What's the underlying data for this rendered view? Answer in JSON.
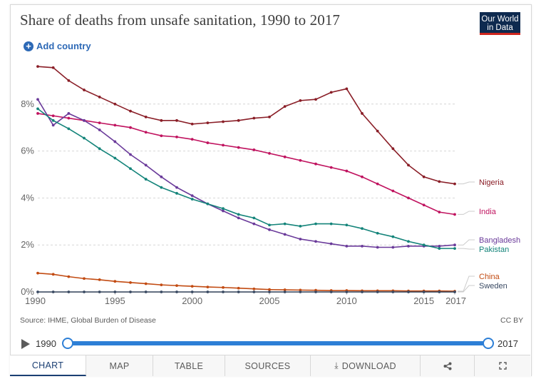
{
  "header": {
    "title": "Share of deaths from unsafe sanitation, 1990 to 2017",
    "logo_line1": "Our World",
    "logo_line2": "in Data",
    "add_country": "Add country"
  },
  "footer": {
    "source": "Source: IHME, Global Burden of Disease",
    "license": "CC BY"
  },
  "timeline": {
    "start": "1990",
    "end": "2017"
  },
  "tabs": [
    {
      "label": "CHART",
      "active": true
    },
    {
      "label": "MAP",
      "active": false
    },
    {
      "label": "TABLE",
      "active": false
    },
    {
      "label": "SOURCES",
      "active": false
    },
    {
      "label": "DOWNLOAD",
      "active": false
    }
  ],
  "chart_data": {
    "type": "line",
    "title": "Share of deaths from unsafe sanitation, 1990 to 2017",
    "xlabel": "",
    "ylabel": "",
    "xlim": [
      1990,
      2017
    ],
    "ylim": [
      0,
      10
    ],
    "y_ticks": [
      0,
      2,
      4,
      6,
      8
    ],
    "y_tick_labels": [
      "0%",
      "2%",
      "4%",
      "6%",
      "8%"
    ],
    "x_ticks": [
      1990,
      1995,
      2000,
      2005,
      2010,
      2015,
      2017
    ],
    "x_tick_labels": [
      "1990",
      "1995",
      "2000",
      "2005",
      "2010",
      "2015",
      "2017"
    ],
    "grid": "horizontal dashed",
    "legend": "right, end-of-line labels",
    "x": [
      1990,
      1991,
      1992,
      1993,
      1994,
      1995,
      1996,
      1997,
      1998,
      1999,
      2000,
      2001,
      2002,
      2003,
      2004,
      2005,
      2006,
      2007,
      2008,
      2009,
      2010,
      2011,
      2012,
      2013,
      2014,
      2015,
      2016,
      2017
    ],
    "series": [
      {
        "name": "Nigeria",
        "color": "#8a1e27",
        "values": [
          9.6,
          9.55,
          9.0,
          8.6,
          8.3,
          8.0,
          7.7,
          7.45,
          7.3,
          7.3,
          7.15,
          7.2,
          7.25,
          7.3,
          7.4,
          7.45,
          7.9,
          8.15,
          8.2,
          8.5,
          8.65,
          7.6,
          6.85,
          6.1,
          5.4,
          4.9,
          4.7,
          4.6
        ]
      },
      {
        "name": "India",
        "color": "#c0135f",
        "values": [
          7.6,
          7.5,
          7.4,
          7.3,
          7.2,
          7.1,
          7.0,
          6.8,
          6.65,
          6.6,
          6.5,
          6.35,
          6.25,
          6.15,
          6.05,
          5.9,
          5.75,
          5.6,
          5.45,
          5.3,
          5.15,
          4.9,
          4.6,
          4.3,
          4.0,
          3.7,
          3.4,
          3.3
        ]
      },
      {
        "name": "Bangladesh",
        "color": "#6a3a9a",
        "values": [
          8.2,
          7.1,
          7.6,
          7.3,
          6.9,
          6.4,
          5.85,
          5.4,
          4.9,
          4.45,
          4.1,
          3.75,
          3.45,
          3.15,
          2.9,
          2.65,
          2.45,
          2.25,
          2.15,
          2.05,
          1.95,
          1.95,
          1.9,
          1.9,
          1.95,
          1.95,
          1.95,
          2.0
        ]
      },
      {
        "name": "Pakistan",
        "color": "#14847a",
        "values": [
          7.8,
          7.3,
          6.95,
          6.55,
          6.1,
          5.7,
          5.25,
          4.8,
          4.45,
          4.2,
          3.95,
          3.75,
          3.55,
          3.3,
          3.15,
          2.85,
          2.9,
          2.8,
          2.9,
          2.9,
          2.85,
          2.7,
          2.5,
          2.35,
          2.15,
          2.0,
          1.85,
          1.85
        ]
      },
      {
        "name": "China",
        "color": "#c24b12",
        "values": [
          0.8,
          0.75,
          0.65,
          0.57,
          0.52,
          0.45,
          0.4,
          0.35,
          0.3,
          0.27,
          0.24,
          0.21,
          0.19,
          0.16,
          0.13,
          0.1,
          0.09,
          0.08,
          0.07,
          0.06,
          0.06,
          0.05,
          0.05,
          0.05,
          0.04,
          0.04,
          0.04,
          0.03
        ]
      },
      {
        "name": "Sweden",
        "color": "#3a4a63",
        "values": [
          0,
          0,
          0,
          0,
          0,
          0,
          0,
          0,
          0,
          0,
          0,
          0,
          0,
          0,
          0,
          0,
          0,
          0,
          0,
          0,
          0,
          0,
          0,
          0,
          0,
          0,
          0,
          0
        ]
      }
    ]
  }
}
